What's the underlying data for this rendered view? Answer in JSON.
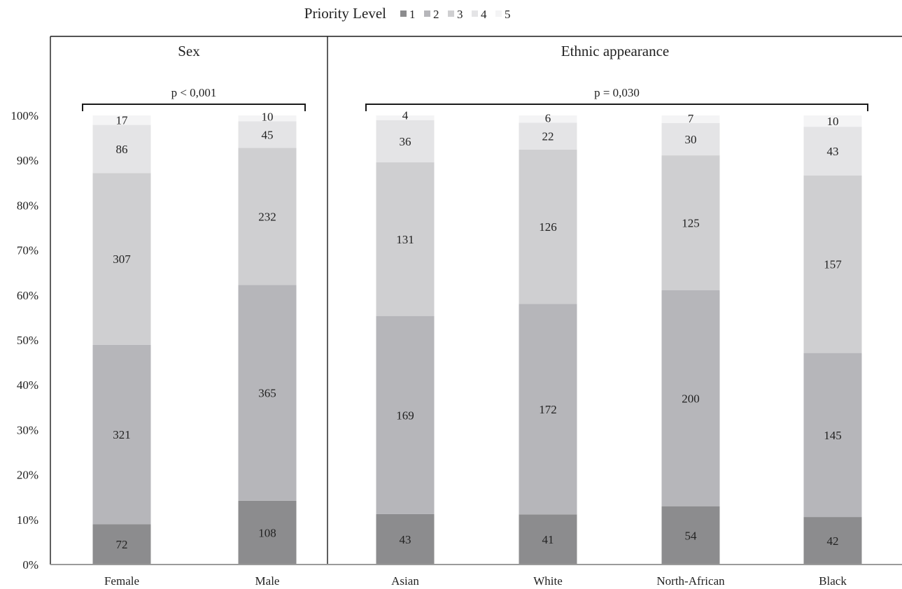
{
  "chart_data": {
    "type": "bar",
    "stacked": true,
    "percent_stacked": true,
    "legend": {
      "title": "Priority Level",
      "placement": "top-center",
      "entries": [
        "1",
        "2",
        "3",
        "4",
        "5"
      ]
    },
    "colors": [
      "#8c8c8e",
      "#b6b6ba",
      "#cfcfd1",
      "#e4e4e6",
      "#f4f4f5"
    ],
    "y_axis": {
      "min": 0,
      "max": 100,
      "step": 10,
      "ticks": [
        "0%",
        "10%",
        "20%",
        "30%",
        "40%",
        "50%",
        "60%",
        "70%",
        "80%",
        "90%",
        "100%"
      ]
    },
    "grid": false,
    "groups": [
      {
        "title": "Sex",
        "p_value": "p < 0,001",
        "categories": [
          "Female",
          "Male"
        ],
        "counts": [
          [
            72,
            321,
            307,
            86,
            17
          ],
          [
            108,
            365,
            232,
            45,
            10
          ]
        ]
      },
      {
        "title": "Ethnic appearance",
        "p_value": "p = 0,030",
        "categories": [
          "Asian",
          "White",
          "North-African",
          "Black"
        ],
        "counts": [
          [
            43,
            169,
            131,
            36,
            4
          ],
          [
            41,
            172,
            126,
            22,
            6
          ],
          [
            54,
            200,
            125,
            30,
            7
          ],
          [
            42,
            145,
            157,
            43,
            10
          ]
        ]
      }
    ]
  }
}
